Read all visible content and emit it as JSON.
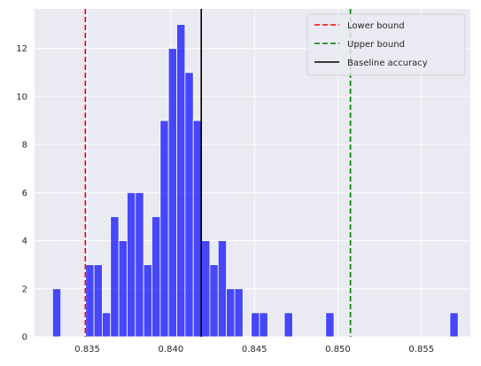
{
  "chart_data": {
    "type": "bar",
    "subtype": "histogram",
    "bin_start": 0.83292,
    "bin_width": 0.0004955,
    "counts": [
      2,
      0,
      0,
      0,
      3,
      3,
      1,
      5,
      4,
      6,
      6,
      3,
      5,
      9,
      12,
      13,
      11,
      9,
      4,
      3,
      4,
      2,
      2,
      0,
      1,
      1,
      0,
      0,
      1,
      0,
      0,
      0,
      0,
      1,
      0,
      0,
      0,
      0,
      0,
      0,
      0,
      0,
      0,
      0,
      0,
      0,
      0,
      0,
      1
    ],
    "xlim": [
      0.83184,
      0.85793
    ],
    "ylim": [
      0,
      13.65
    ],
    "xticks": [
      0.835,
      0.84,
      0.845,
      0.85,
      0.855
    ],
    "xtick_labels": [
      "0.835",
      "0.840",
      "0.845",
      "0.850",
      "0.855"
    ],
    "yticks": [
      0,
      2,
      4,
      6,
      8,
      10,
      12
    ],
    "ytick_labels": [
      "0",
      "2",
      "4",
      "6",
      "8",
      "10",
      "12"
    ],
    "bar_color": "#0000ff",
    "bar_alpha": 0.7,
    "background": "#eaeaf2",
    "grid": true,
    "legend_position": "top-right",
    "lines": [
      {
        "name": "Lower bound",
        "x": 0.83488,
        "color": "#ff0000",
        "style": "dashed"
      },
      {
        "name": "Upper bound",
        "x": 0.85075,
        "color": "#008000",
        "style": "dashed"
      },
      {
        "name": "Baseline accuracy",
        "x": 0.84182,
        "color": "#000000",
        "style": "solid"
      }
    ]
  }
}
